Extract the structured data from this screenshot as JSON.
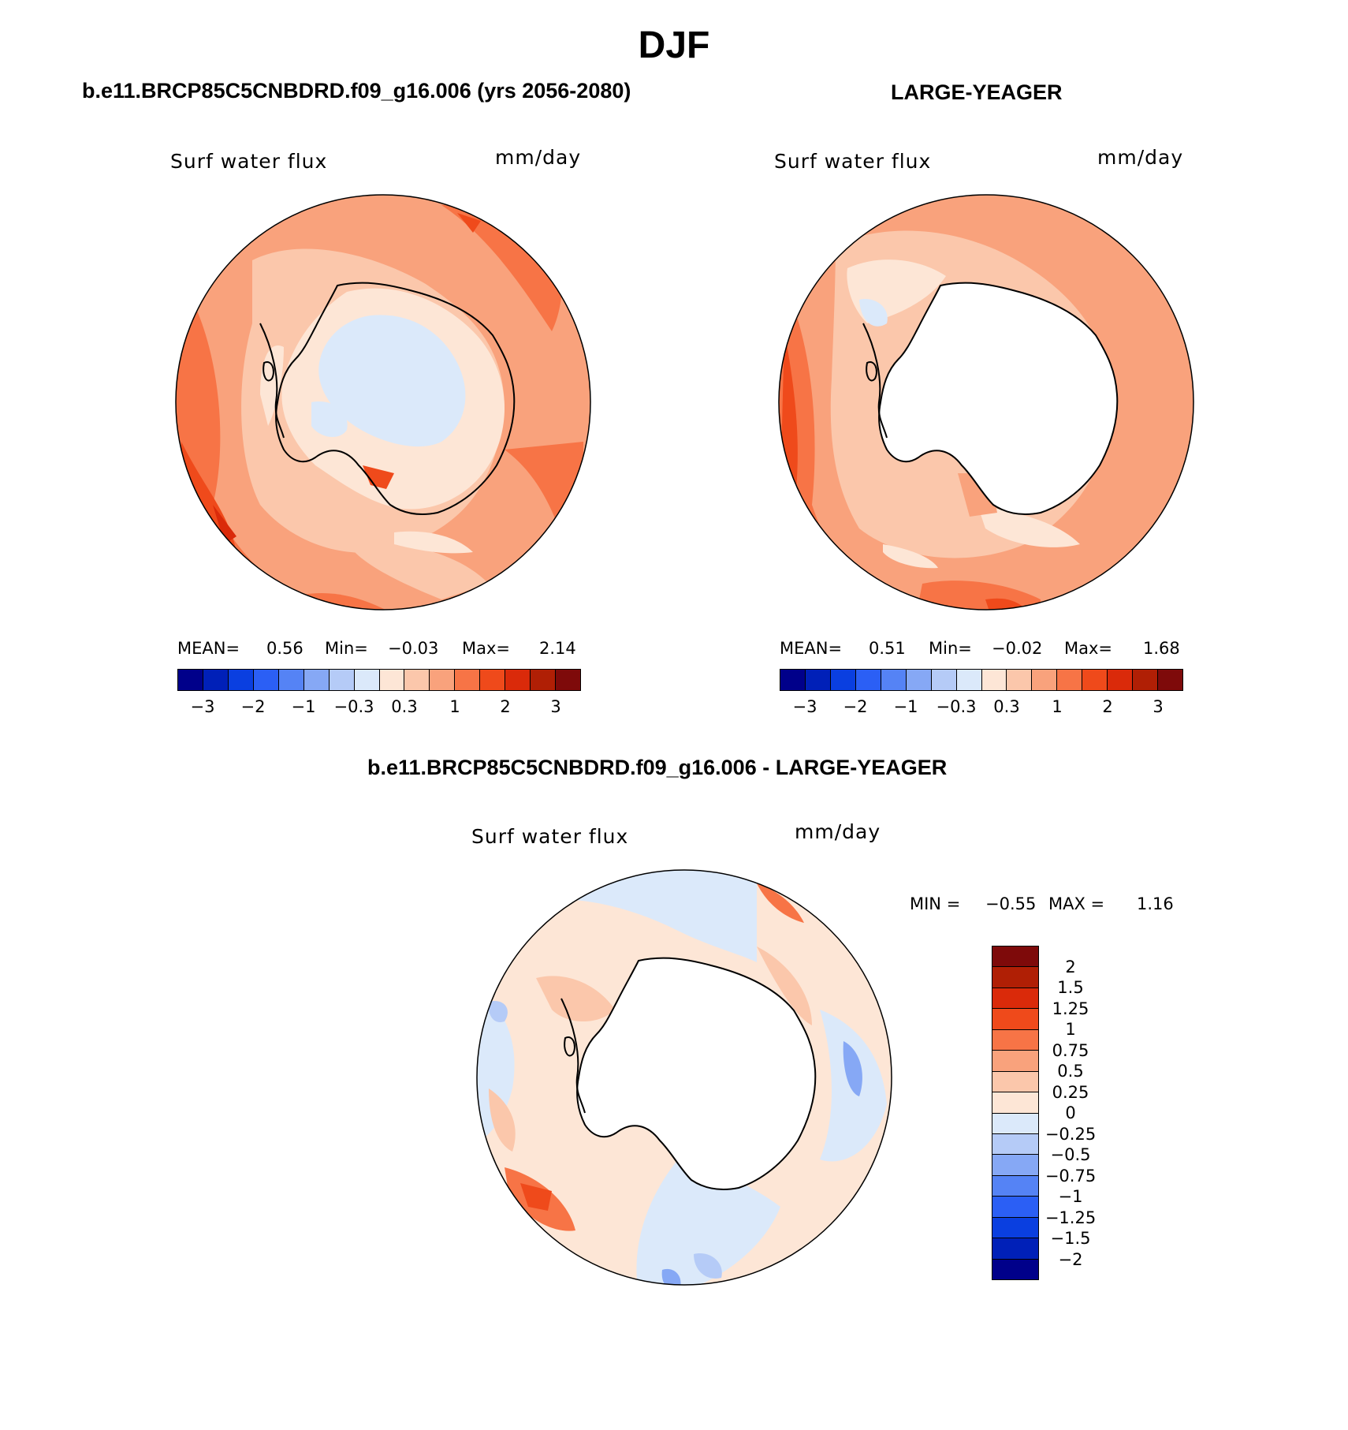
{
  "figure": {
    "season": "DJF",
    "variable_label": "Surf water flux",
    "units": "mm/day"
  },
  "panels": [
    {
      "title": "b.e11.BRCP85C5CNBDRD.f09_g16.006 (yrs 2056-2080)",
      "mean_label": "MEAN=",
      "mean": "0.56",
      "min_label": "Min=",
      "min": "−0.03",
      "max_label": "Max=",
      "max": "2.14"
    },
    {
      "title": "LARGE-YEAGER",
      "mean_label": "MEAN=",
      "mean": "0.51",
      "min_label": "Min=",
      "min": "−0.02",
      "max_label": "Max=",
      "max": "1.68"
    },
    {
      "title": "b.e11.BRCP85C5CNBDRD.f09_g16.006 - LARGE-YEAGER",
      "min_label": "MIN =",
      "min": "−0.55",
      "max_label": "MAX =",
      "max": "1.16"
    }
  ],
  "colorbar_top": {
    "colors": [
      "#00008a",
      "#0020b8",
      "#0a3fe0",
      "#2b5ff5",
      "#5583f5",
      "#86a8f5",
      "#b5cbf7",
      "#dbe9fa",
      "#fde6d6",
      "#fbc7ab",
      "#f9a27c",
      "#f77446",
      "#ef4a1b",
      "#da2a0a",
      "#b01f05",
      "#7e0a0a"
    ],
    "tick_labels": [
      "−3",
      "−2",
      "−1",
      "−0.3",
      "0.3",
      "1",
      "2",
      "3"
    ]
  },
  "colorbar_diff": {
    "colors": [
      "#7e0a0a",
      "#b01f05",
      "#da2a0a",
      "#ef4a1b",
      "#f77446",
      "#f9a27c",
      "#fbc7ab",
      "#fde6d6",
      "#dbe9fa",
      "#b5cbf7",
      "#86a8f5",
      "#5583f5",
      "#2b5ff5",
      "#0a3fe0",
      "#0020b8",
      "#00008a"
    ],
    "tick_labels": [
      "2",
      "1.5",
      "1.25",
      "1",
      "0.75",
      "0.5",
      "0.25",
      "0",
      "−0.25",
      "−0.5",
      "−0.75",
      "−1",
      "−1.25",
      "−1.5",
      "−2"
    ]
  }
}
